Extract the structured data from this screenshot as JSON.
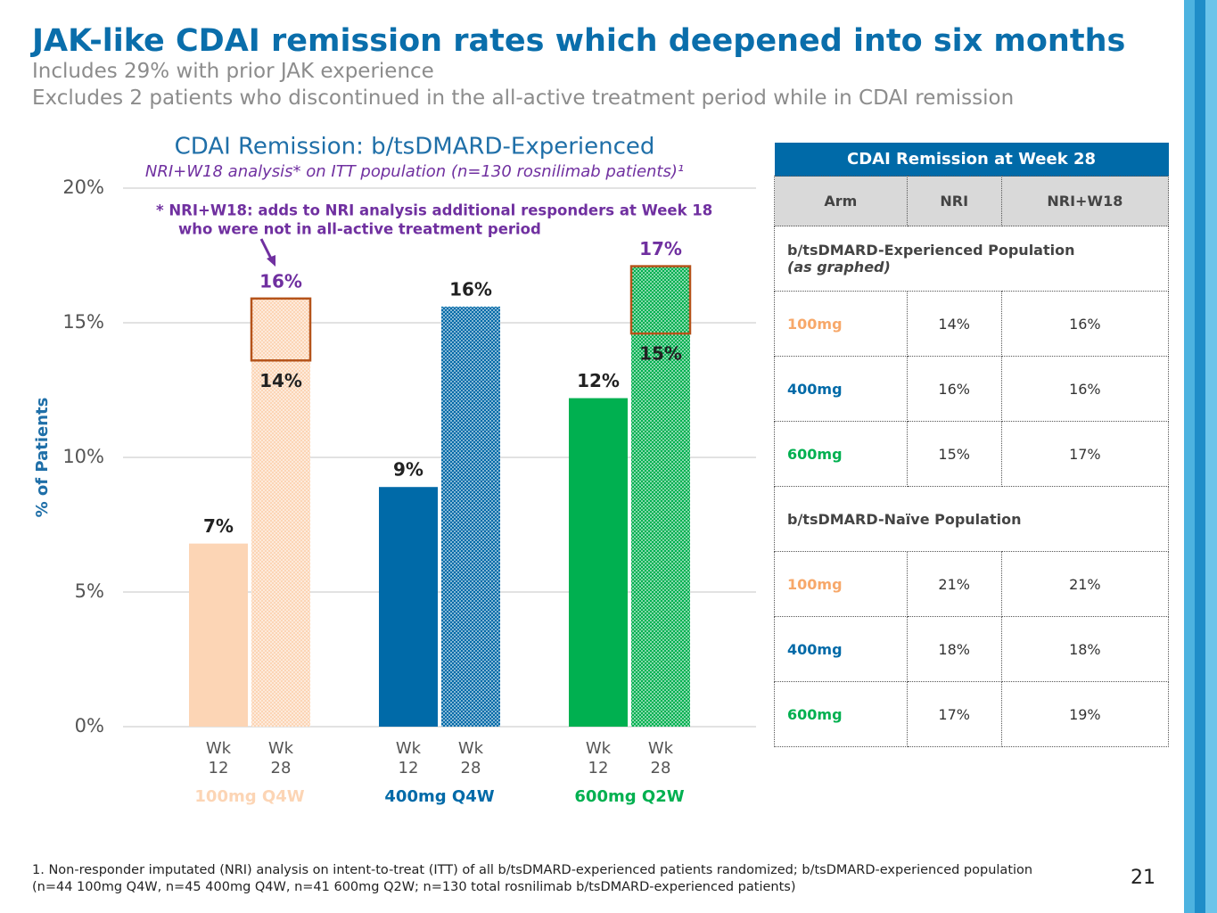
{
  "header": {
    "title": "JAK-like CDAI remission rates which deepened into six months",
    "subtitle_lines": [
      "Includes 29% with prior JAK experience",
      "Excludes 2 patients who discontinued in the all-active treatment period while in CDAI remission"
    ]
  },
  "chart_data": {
    "type": "bar",
    "title": "CDAI Remission: b/tsDMARD-Experienced",
    "subtitle": "NRI+W18 analysis* on ITT population (n=130 rosnilimab patients)¹",
    "annotation_lines": [
      "*  NRI+W18: adds to NRI analysis additional responders at Week 18",
      "who were not in all-active treatment period"
    ],
    "y_label": "% of Patients",
    "ylim": [
      0,
      20
    ],
    "yticks": [
      {
        "value": 0,
        "label": "0%"
      },
      {
        "value": 5,
        "label": "5%"
      },
      {
        "value": 10,
        "label": "10%"
      },
      {
        "value": 15,
        "label": "15%"
      },
      {
        "value": 20,
        "label": "20%"
      }
    ],
    "grid": true,
    "categories": [
      "100mg Q4W",
      "400mg Q4W",
      "600mg Q2W"
    ],
    "category_colors": [
      "#fcd5b5",
      "#006aa8",
      "#00b050"
    ],
    "sub_categories": [
      "Wk 12",
      "Wk 28"
    ],
    "wk12": {
      "values": [
        6.8,
        8.9,
        12.2
      ],
      "value_labels": [
        "7%",
        "9%",
        "12%"
      ]
    },
    "wk28_nri": {
      "values": [
        13.6,
        15.6,
        14.6
      ],
      "value_labels": [
        "14%",
        "16%",
        "15%"
      ]
    },
    "wk28_nri_w18": {
      "values": [
        15.9,
        null,
        17.1
      ],
      "value_labels": [
        "16%",
        null,
        "17%"
      ],
      "label_color": "#7030a0",
      "box_color": "#b5531a"
    }
  },
  "table": {
    "title": "CDAI Remission at Week 28",
    "header": [
      "Arm",
      "NRI",
      "NRI+W18"
    ],
    "sections": [
      {
        "title": "b/tsDMARD-Experienced Population",
        "note": "(as graphed)",
        "rows": [
          [
            "100mg",
            "14%",
            "16%"
          ],
          [
            "400mg",
            "16%",
            "16%"
          ],
          [
            "600mg",
            "15%",
            "17%"
          ]
        ]
      },
      {
        "title": "b/tsDMARD-Naïve Population",
        "rows": [
          [
            "100mg",
            "21%",
            "21%"
          ],
          [
            "400mg",
            "18%",
            "18%"
          ],
          [
            "600mg",
            "17%",
            "19%"
          ]
        ]
      }
    ]
  },
  "footnote_lines": [
    "1. Non-responder imputated (NRI) analysis on intent-to-treat (ITT) of all b/tsDMARD-experienced patients randomized; b/tsDMARD-experienced population",
    "(n=44 100mg Q4W, n=45 400mg Q4W, n=41 600mg Q2W; n=130 total rosnilimab b/tsDMARD-experienced patients)"
  ],
  "page_number": "21"
}
